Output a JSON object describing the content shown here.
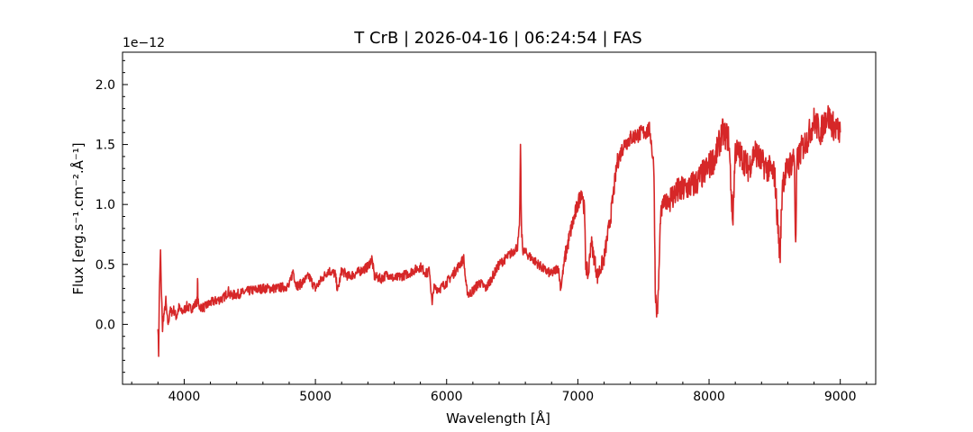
{
  "chart_data": {
    "type": "line",
    "title": "T CrB | 2026-04-16 | 06:24:54 | FAS",
    "xlabel": "Wavelength [Å]",
    "ylabel": "Flux [erg.s⁻¹.cm⁻².Å⁻¹]",
    "y_offset_label": "1e−12",
    "xlim": [
      3530,
      9270
    ],
    "ylim": [
      -0.5,
      2.27
    ],
    "x_ticks": [
      4000,
      5000,
      6000,
      7000,
      8000,
      9000
    ],
    "x_tick_labels": [
      "4000",
      "5000",
      "6000",
      "7000",
      "8000",
      "9000"
    ],
    "y_ticks": [
      0.0,
      0.5,
      1.0,
      1.5,
      2.0
    ],
    "y_tick_labels": [
      "0.0",
      "0.5",
      "1.0",
      "1.5",
      "2.0"
    ],
    "grid": false,
    "line_color": "#d62728",
    "series": [
      {
        "x": [
          3800,
          3805,
          3810,
          3815,
          3820,
          3825,
          3830,
          3835,
          3840,
          3850,
          3860,
          3870,
          3880,
          3890,
          3900,
          3920,
          3940,
          3960,
          3980,
          4000,
          4020,
          4050,
          4080,
          4100,
          4102,
          4105,
          4110,
          4150,
          4200,
          4250,
          4300,
          4340,
          4350,
          4400,
          4500,
          4600,
          4700,
          4800,
          4830,
          4850,
          4870,
          4900,
          4950,
          5000,
          5050,
          5100,
          5150,
          5170,
          5200,
          5250,
          5300,
          5350,
          5400,
          5430,
          5450,
          5500,
          5550,
          5600,
          5650,
          5700,
          5750,
          5800,
          5850,
          5870,
          5890,
          5900,
          5950,
          6000,
          6050,
          6100,
          6130,
          6150,
          6170,
          6200,
          6250,
          6300,
          6350,
          6400,
          6450,
          6500,
          6540,
          6555,
          6563,
          6570,
          6580,
          6600,
          6650,
          6700,
          6750,
          6800,
          6850,
          6870,
          6900,
          6950,
          7000,
          7030,
          7050,
          7060,
          7080,
          7100,
          7150,
          7200,
          7250,
          7300,
          7350,
          7400,
          7450,
          7500,
          7550,
          7580,
          7590,
          7600,
          7610,
          7620,
          7630,
          7650,
          7700,
          7750,
          7800,
          7850,
          7900,
          7950,
          8000,
          8050,
          8100,
          8150,
          8180,
          8200,
          8250,
          8300,
          8350,
          8400,
          8450,
          8500,
          8540,
          8560,
          8600,
          8650,
          8660,
          8670,
          8700,
          8750,
          8800,
          8850,
          8900,
          8950,
          9000
        ],
        "y": [
          0.0,
          -0.25,
          0.2,
          0.45,
          0.6,
          0.3,
          0.15,
          -0.05,
          0.05,
          0.1,
          0.2,
          0.05,
          0.0,
          0.12,
          0.1,
          0.12,
          0.06,
          0.14,
          0.1,
          0.12,
          0.15,
          0.13,
          0.16,
          0.2,
          0.42,
          0.2,
          0.15,
          0.14,
          0.18,
          0.2,
          0.22,
          0.28,
          0.24,
          0.25,
          0.28,
          0.3,
          0.3,
          0.32,
          0.45,
          0.34,
          0.32,
          0.35,
          0.4,
          0.3,
          0.38,
          0.45,
          0.42,
          0.28,
          0.45,
          0.4,
          0.42,
          0.45,
          0.48,
          0.55,
          0.4,
          0.38,
          0.42,
          0.38,
          0.4,
          0.42,
          0.45,
          0.48,
          0.42,
          0.45,
          0.15,
          0.3,
          0.3,
          0.35,
          0.42,
          0.5,
          0.55,
          0.3,
          0.25,
          0.28,
          0.35,
          0.3,
          0.4,
          0.5,
          0.55,
          0.6,
          0.65,
          0.8,
          1.5,
          0.8,
          0.62,
          0.6,
          0.55,
          0.5,
          0.45,
          0.42,
          0.48,
          0.3,
          0.55,
          0.8,
          1.0,
          1.12,
          0.95,
          0.5,
          0.4,
          0.7,
          0.4,
          0.55,
          0.9,
          1.35,
          1.5,
          1.55,
          1.58,
          1.6,
          1.62,
          1.3,
          0.3,
          0.1,
          0.15,
          0.5,
          0.9,
          1.0,
          1.05,
          1.1,
          1.12,
          1.15,
          1.18,
          1.25,
          1.32,
          1.4,
          1.6,
          1.55,
          0.85,
          1.45,
          1.4,
          1.3,
          1.45,
          1.35,
          1.3,
          1.25,
          0.55,
          1.2,
          1.3,
          1.4,
          0.6,
          1.35,
          1.45,
          1.55,
          1.7,
          1.6,
          1.75,
          1.65,
          1.6
        ]
      }
    ]
  }
}
